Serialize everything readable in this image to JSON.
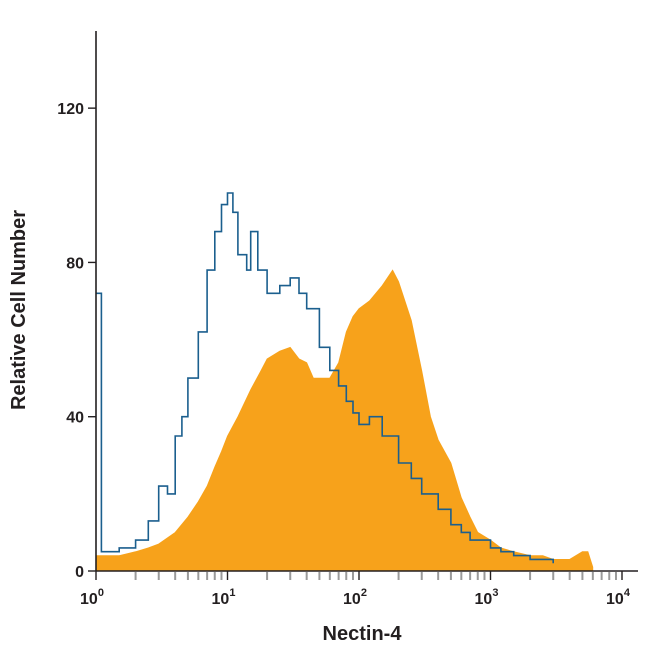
{
  "chart_data": {
    "type": "area",
    "title": "",
    "xlabel": "Nectin-4",
    "ylabel": "Relative Cell Number",
    "x_scale": "log",
    "xlim": [
      1,
      10000
    ],
    "ylim": [
      0,
      140
    ],
    "grid": false,
    "legend": "none",
    "x_ticks": [
      {
        "value": 1,
        "base": "10",
        "exp": "0"
      },
      {
        "value": 10,
        "base": "10",
        "exp": "1"
      },
      {
        "value": 100,
        "base": "10",
        "exp": "2"
      },
      {
        "value": 1000,
        "base": "10",
        "exp": "3"
      },
      {
        "value": 10000,
        "base": "10",
        "exp": "4"
      }
    ],
    "y_ticks": [
      {
        "value": 0,
        "label": "0"
      },
      {
        "value": 40,
        "label": "40"
      },
      {
        "value": 80,
        "label": "80"
      },
      {
        "value": 120,
        "label": "120"
      }
    ],
    "series": [
      {
        "style": "filled",
        "color": "#f7a21b",
        "x": [
          1,
          1.5,
          2,
          2.5,
          3,
          4,
          5,
          6,
          7,
          8,
          9,
          10,
          12,
          15,
          18,
          20,
          25,
          30,
          35,
          40,
          45,
          50,
          60,
          70,
          80,
          90,
          100,
          120,
          150,
          180,
          200,
          250,
          300,
          350,
          400,
          500,
          600,
          700,
          800,
          1000,
          1200,
          1500,
          2000,
          2500,
          3000,
          4000,
          5000,
          5500,
          6000
        ],
        "y": [
          4,
          4,
          5,
          6,
          7,
          10,
          14,
          18,
          22,
          27,
          31,
          35,
          40,
          47,
          52,
          55,
          57,
          58,
          55,
          54,
          50,
          50,
          50,
          54,
          62,
          66,
          68,
          70,
          74,
          78,
          75,
          65,
          52,
          40,
          34,
          28,
          19,
          14,
          10,
          8,
          6,
          5,
          4,
          4,
          3,
          3,
          5,
          5,
          1
        ]
      },
      {
        "style": "outline",
        "color": "#1b5f8e",
        "x": [
          1,
          1.05,
          1.1,
          1.5,
          2,
          2.5,
          3,
          3.5,
          4,
          4.5,
          5,
          6,
          7,
          8,
          9,
          10,
          11,
          12,
          14,
          15,
          17,
          20,
          25,
          30,
          35,
          40,
          50,
          60,
          70,
          80,
          90,
          100,
          120,
          150,
          200,
          250,
          300,
          400,
          500,
          600,
          700,
          800,
          1000,
          1200,
          1500,
          2000,
          2500,
          3000
        ],
        "y": [
          72,
          72,
          5,
          6,
          8,
          13,
          22,
          20,
          35,
          40,
          50,
          62,
          78,
          88,
          95,
          98,
          93,
          82,
          78,
          88,
          78,
          72,
          74,
          76,
          72,
          68,
          58,
          52,
          48,
          44,
          41,
          38,
          40,
          35,
          28,
          24,
          20,
          16,
          12,
          10,
          8,
          8,
          6,
          5,
          4,
          3,
          3,
          2
        ]
      }
    ]
  }
}
